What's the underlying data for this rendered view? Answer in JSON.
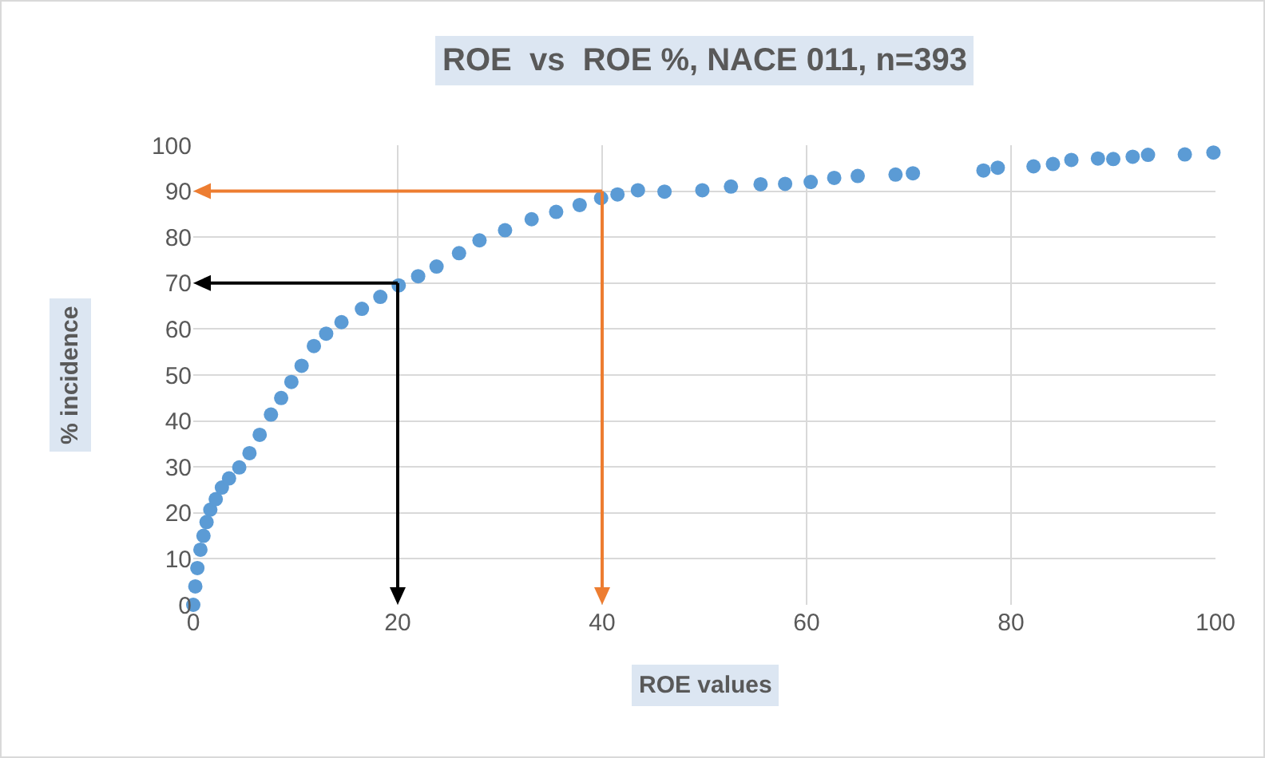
{
  "chart_data": {
    "type": "scatter",
    "title": "ROE  vs  ROE %, NACE 011, n=393",
    "xlabel": "ROE values",
    "ylabel": "% incidence",
    "x": [
      0,
      0.2,
      0.4,
      0.7,
      1.0,
      1.3,
      1.67,
      2.2,
      2.8,
      3.5,
      4.5,
      5.5,
      6.5,
      7.6,
      8.6,
      9.6,
      10.6,
      11.8,
      13.0,
      14.5,
      16.5,
      18.3,
      20.1,
      22.0,
      23.8,
      26.0,
      28,
      30.5,
      33.1,
      35.5,
      37.8,
      39.9,
      41.5,
      43.5,
      46.1,
      49.8,
      52.6,
      55.5,
      57.9,
      60.4,
      62.7,
      65.0,
      68.7,
      70.4,
      77.3,
      78.7,
      82.2,
      84.1,
      85.9,
      88.5,
      90.0,
      91.9,
      93.4,
      97.0,
      99.8
    ],
    "values": [
      0,
      4,
      8,
      12,
      15,
      18,
      20.7,
      23,
      25.5,
      27.5,
      29.9,
      33,
      37,
      41.4,
      45,
      48.5,
      52,
      56.3,
      59,
      61.5,
      64.4,
      67,
      69.5,
      71.5,
      73.6,
      76.5,
      79.3,
      81.5,
      83.9,
      85.5,
      87,
      88.5,
      89.3,
      90.2,
      89.9,
      90.2,
      91.0,
      91.5,
      91.6,
      92.0,
      92.9,
      93.3,
      93.6,
      93.9,
      94.5,
      95.1,
      95.4,
      95.9,
      96.8,
      97.1,
      97.0,
      97.5,
      97.9,
      98.0,
      98.4
    ],
    "color": "#5b9bd5",
    "marker": "circle",
    "xlim": [
      0,
      100
    ],
    "ylim": [
      0,
      100
    ],
    "xticks": [
      0,
      20,
      40,
      60,
      80,
      100
    ],
    "yticks": [
      0,
      10,
      20,
      30,
      40,
      50,
      60,
      70,
      80,
      90,
      100
    ],
    "grid": true,
    "ref_lines": [
      {
        "axis": "y",
        "value": 90,
        "color": "#ed7d31"
      },
      {
        "axis": "x",
        "value": 40,
        "color": "#ed7d31"
      },
      {
        "axis": "y",
        "value": 70,
        "color": "#000000"
      },
      {
        "axis": "x",
        "value": 20,
        "color": "#000000"
      }
    ]
  }
}
